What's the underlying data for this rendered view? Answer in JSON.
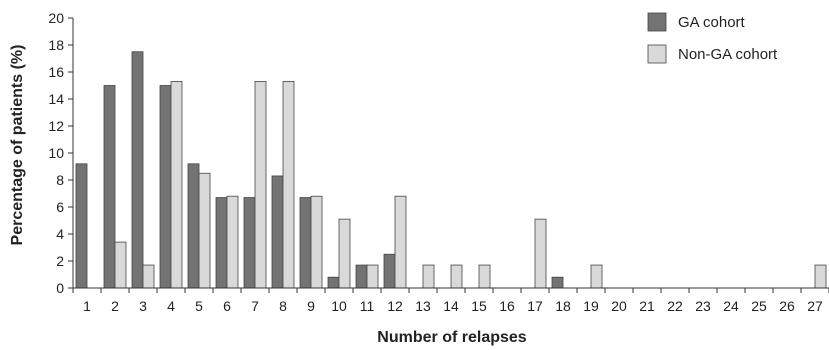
{
  "chart_data": {
    "type": "bar",
    "title": "",
    "xlabel": "Number of relapses",
    "ylabel": "Percentage of patients (%)",
    "ylim": [
      0,
      20
    ],
    "yticks": [
      "0",
      "2",
      "4",
      "6",
      "8",
      "10",
      "12",
      "14",
      "16",
      "18",
      "20"
    ],
    "grid": false,
    "legend_position": "top-right",
    "categories": [
      "1",
      "2",
      "3",
      "4",
      "5",
      "6",
      "7",
      "8",
      "9",
      "10",
      "11",
      "12",
      "13",
      "14",
      "15",
      "16",
      "17",
      "18",
      "19",
      "20",
      "21",
      "22",
      "23",
      "24",
      "25",
      "26",
      "27"
    ],
    "series": [
      {
        "name": "GA cohort",
        "color": "#737373",
        "values": [
          9.2,
          15.0,
          17.5,
          15.0,
          9.2,
          6.7,
          6.7,
          8.3,
          6.7,
          0.8,
          1.7,
          2.5,
          0,
          0,
          0,
          0,
          0,
          0.8,
          0,
          0,
          0,
          0,
          0,
          0,
          0,
          0,
          0
        ]
      },
      {
        "name": "Non-GA cohort",
        "color": "#d9d9d9",
        "values": [
          0,
          3.4,
          1.7,
          15.3,
          8.5,
          6.8,
          15.3,
          15.3,
          6.8,
          5.1,
          1.7,
          6.8,
          1.7,
          1.7,
          1.7,
          0,
          5.1,
          0,
          1.7,
          0,
          0,
          0,
          0,
          0,
          0,
          0,
          1.7
        ]
      }
    ]
  }
}
